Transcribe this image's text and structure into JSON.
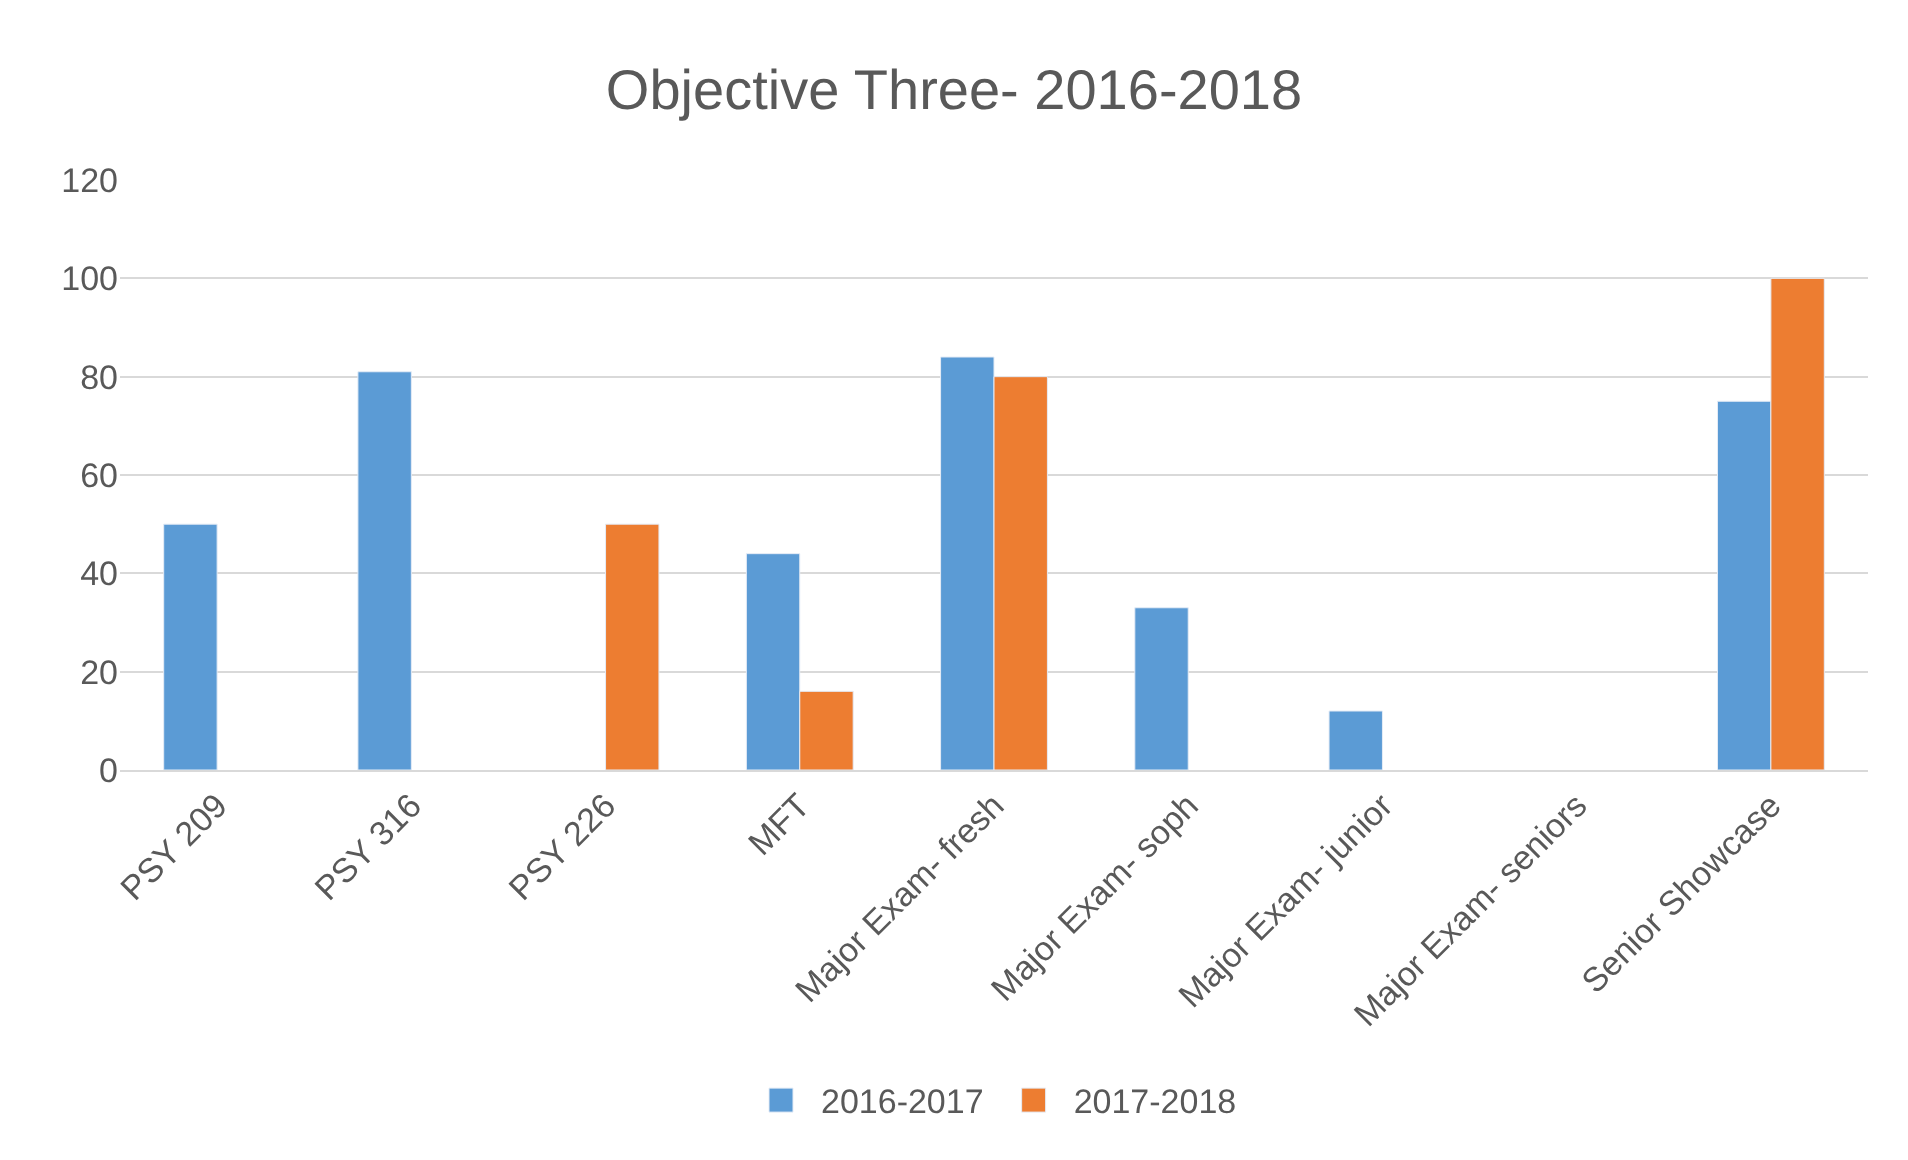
{
  "chart_data": {
    "type": "bar",
    "title": "Objective Three- 2016-2018",
    "categories": [
      "PSY 209",
      "PSY 316",
      "PSY 226",
      "MFT",
      "Major Exam- fresh",
      "Major Exam- soph",
      "Major Exam- junior",
      "Major Exam- seniors",
      "Senior Showcase"
    ],
    "series": [
      {
        "name": "2016-2017",
        "color": "#5b9bd5",
        "values": [
          50,
          81,
          null,
          44,
          84,
          33,
          12,
          null,
          75
        ]
      },
      {
        "name": "2017-2018",
        "color": "#ed7d31",
        "values": [
          null,
          null,
          50,
          16,
          80,
          null,
          null,
          null,
          100
        ]
      }
    ],
    "ylim": [
      0,
      120
    ],
    "yticks": [
      0,
      20,
      40,
      60,
      80,
      100,
      120
    ],
    "grid": "y",
    "legend": "bottom"
  }
}
